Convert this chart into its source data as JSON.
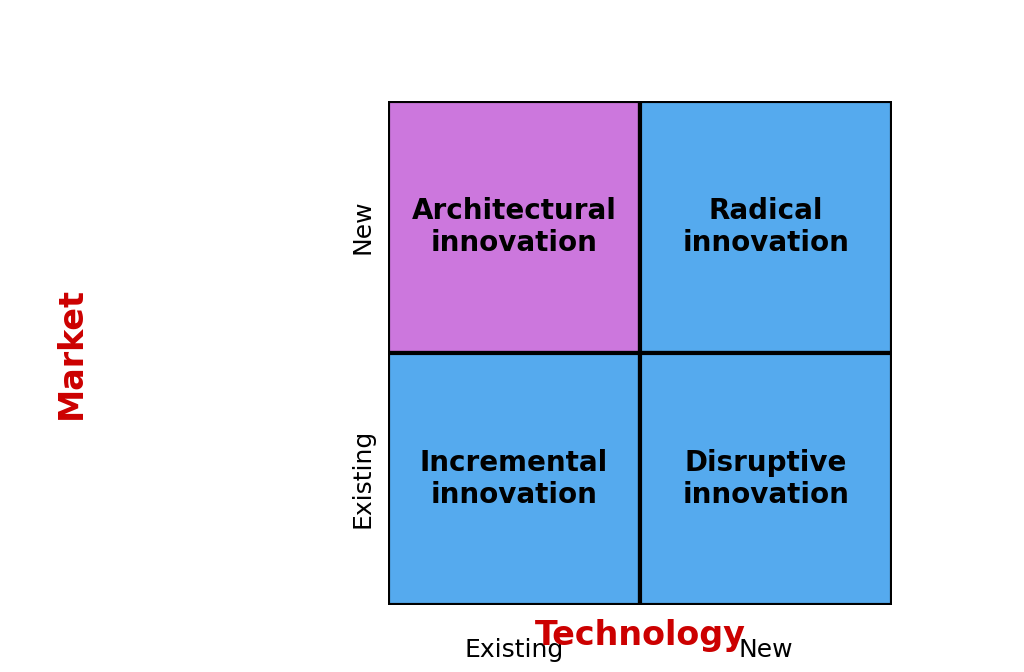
{
  "quadrants": [
    {
      "label": "Architectural\ninnovation",
      "row": 1,
      "col": 0,
      "color": "#CC77DD"
    },
    {
      "label": "Radical\ninnovation",
      "row": 1,
      "col": 1,
      "color": "#55AAEE"
    },
    {
      "label": "Incremental\ninnovation",
      "row": 0,
      "col": 0,
      "color": "#55AAEE"
    },
    {
      "label": "Disruptive\ninnovation",
      "row": 0,
      "col": 1,
      "color": "#55AAEE"
    }
  ],
  "x_axis_label": "Technology",
  "y_axis_label": "Market",
  "x_tick_labels": [
    "Existing",
    "New"
  ],
  "y_tick_labels": [
    "Existing",
    "New"
  ],
  "axis_label_color": "#CC0000",
  "tick_label_color": "#000000",
  "border_color": "#000000",
  "background_color": "#ffffff",
  "cell_text_color": "#000000",
  "cell_fontsize": 20,
  "axis_label_fontsize": 24,
  "tick_label_fontsize": 18,
  "border_linewidth": 3
}
